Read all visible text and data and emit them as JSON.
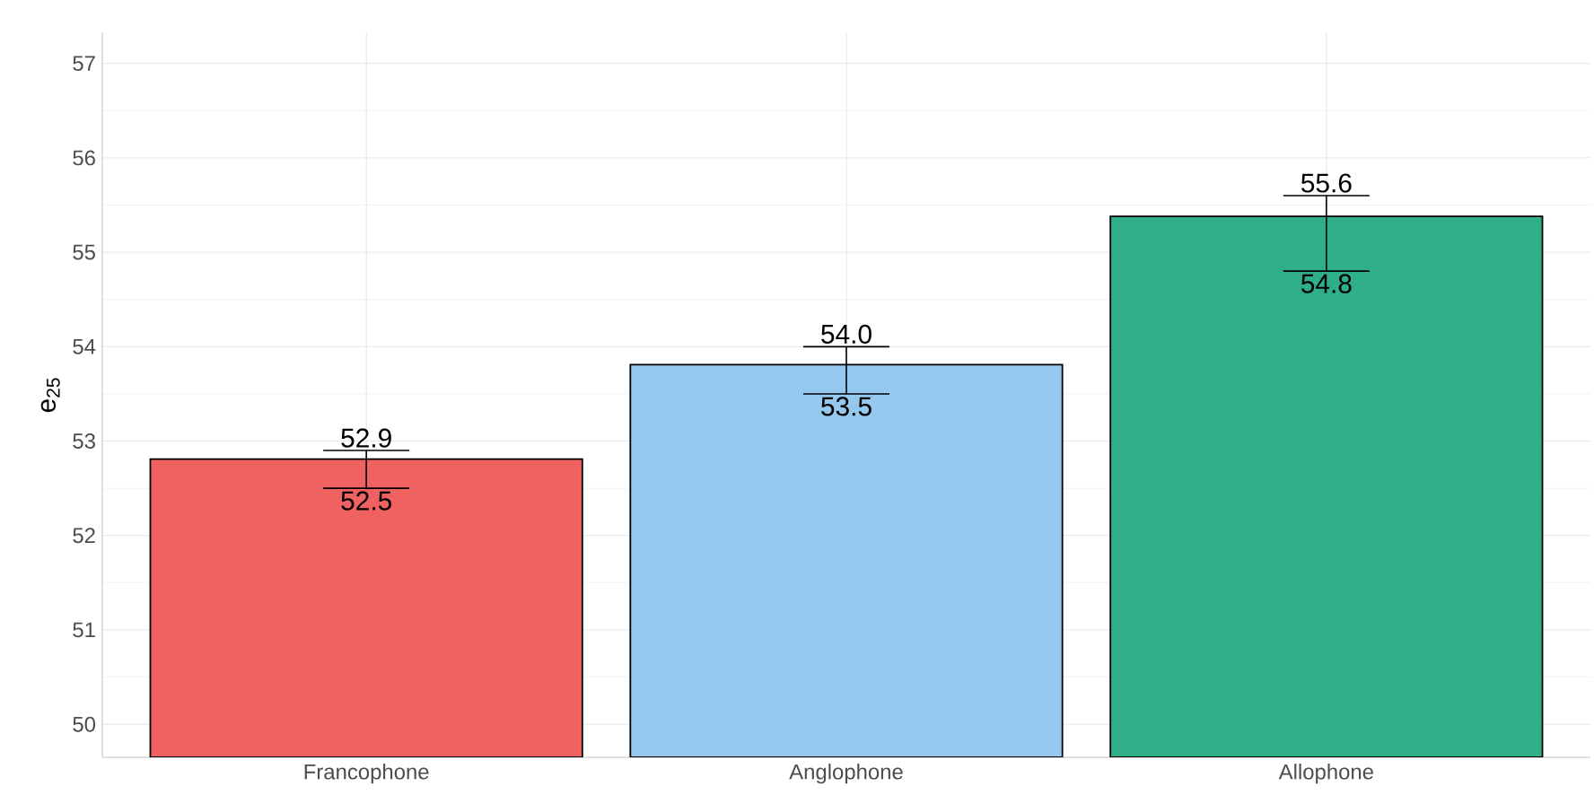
{
  "chart_data": {
    "type": "bar",
    "ylabel": "e$_{25}$",
    "categories": [
      "Francophone",
      "Anglophone",
      "Allophone"
    ],
    "values": [
      52.81,
      53.81,
      55.38
    ],
    "colors": [
      "#f06262",
      "#95c8ef",
      "#2eae89"
    ],
    "errors": [
      [
        52.5,
        52.9
      ],
      [
        53.5,
        54.0
      ],
      [
        54.8,
        55.6
      ]
    ],
    "annotations": [
      {
        "text": "52.9",
        "x": "Francophone",
        "y": 52.9
      },
      {
        "text": "52.5",
        "x": "Francophone",
        "y": 52.5
      },
      {
        "text": "54.0",
        "x": "Anglophone",
        "y": 54.0
      },
      {
        "text": "53.5",
        "x": "Anglophone",
        "y": 53.5
      },
      {
        "text": "55.6",
        "x": "Allophone",
        "y": 55.6
      },
      {
        "text": "54.8",
        "x": "Allophone",
        "y": 54.8
      }
    ],
    "ylim": [
      49.65,
      57.33
    ],
    "yticks": [
      50,
      51,
      52,
      53,
      54,
      55,
      56,
      57
    ],
    "grid": true
  }
}
